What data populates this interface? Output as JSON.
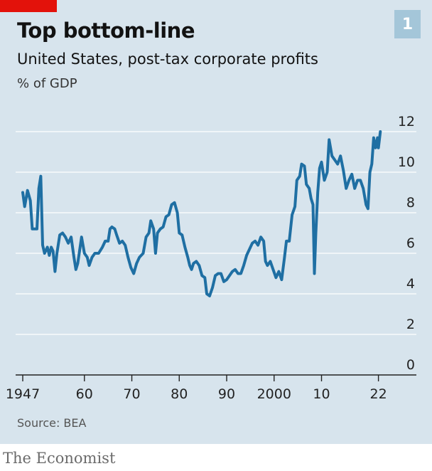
{
  "badge": "1",
  "header": {
    "title": "Top bottom-line",
    "subtitle": "United States, post-tax corporate profits",
    "unit": "% of GDP"
  },
  "footer": {
    "source": "Source: BEA",
    "brand": "The Economist"
  },
  "colors": {
    "background": "#d7e4ed",
    "line": "#1f6fa3",
    "accent_red": "#e3120b",
    "badge": "#a4c6d9",
    "grid": "#ffffff"
  },
  "chart_data": {
    "type": "line",
    "title": "Top bottom-line",
    "subtitle": "United States, post-tax corporate profits",
    "ylabel": "% of GDP",
    "xlabel": "",
    "xlim": [
      1945.5,
      2030
    ],
    "ylim": [
      0,
      12
    ],
    "y_ticks": [
      0,
      2,
      4,
      6,
      8,
      10,
      12
    ],
    "x_ticks": [
      {
        "value": 1947,
        "label": "1947"
      },
      {
        "value": 1960,
        "label": "60"
      },
      {
        "value": 1970,
        "label": "70"
      },
      {
        "value": 1980,
        "label": "80"
      },
      {
        "value": 1990,
        "label": "90"
      },
      {
        "value": 2000,
        "label": "2000"
      },
      {
        "value": 2010,
        "label": "10"
      },
      {
        "value": 2022,
        "label": "22"
      }
    ],
    "grid": true,
    "y_axis_side": "right",
    "series": [
      {
        "values": [
          [
            1947.0,
            9.0
          ],
          [
            1947.4,
            8.3
          ],
          [
            1948.0,
            9.1
          ],
          [
            1948.6,
            8.6
          ],
          [
            1949.0,
            7.2
          ],
          [
            1949.6,
            7.2
          ],
          [
            1950.0,
            7.2
          ],
          [
            1950.4,
            9.2
          ],
          [
            1950.8,
            9.8
          ],
          [
            1951.2,
            6.4
          ],
          [
            1951.6,
            6.0
          ],
          [
            1952.2,
            6.3
          ],
          [
            1952.6,
            5.9
          ],
          [
            1953.0,
            6.3
          ],
          [
            1953.4,
            6.1
          ],
          [
            1953.8,
            5.1
          ],
          [
            1954.2,
            6.0
          ],
          [
            1954.8,
            6.9
          ],
          [
            1955.4,
            7.0
          ],
          [
            1956.0,
            6.8
          ],
          [
            1956.6,
            6.5
          ],
          [
            1957.2,
            6.8
          ],
          [
            1957.8,
            5.8
          ],
          [
            1958.2,
            5.2
          ],
          [
            1958.6,
            5.5
          ],
          [
            1959.4,
            6.8
          ],
          [
            1960.0,
            6.0
          ],
          [
            1960.6,
            5.8
          ],
          [
            1961.0,
            5.4
          ],
          [
            1961.6,
            5.8
          ],
          [
            1962.2,
            6.0
          ],
          [
            1963.0,
            6.0
          ],
          [
            1963.8,
            6.3
          ],
          [
            1964.4,
            6.6
          ],
          [
            1965.0,
            6.6
          ],
          [
            1965.4,
            7.2
          ],
          [
            1965.8,
            7.3
          ],
          [
            1966.4,
            7.2
          ],
          [
            1966.8,
            6.9
          ],
          [
            1967.4,
            6.5
          ],
          [
            1968.0,
            6.6
          ],
          [
            1968.6,
            6.4
          ],
          [
            1969.2,
            5.8
          ],
          [
            1969.8,
            5.3
          ],
          [
            1970.4,
            5.0
          ],
          [
            1971.0,
            5.5
          ],
          [
            1971.6,
            5.8
          ],
          [
            1972.4,
            6.0
          ],
          [
            1973.0,
            6.8
          ],
          [
            1973.6,
            7.0
          ],
          [
            1974.0,
            7.6
          ],
          [
            1974.6,
            7.2
          ],
          [
            1975.0,
            6.0
          ],
          [
            1975.4,
            7.0
          ],
          [
            1976.0,
            7.2
          ],
          [
            1976.6,
            7.3
          ],
          [
            1977.2,
            7.8
          ],
          [
            1977.8,
            7.9
          ],
          [
            1978.4,
            8.4
          ],
          [
            1979.0,
            8.5
          ],
          [
            1979.6,
            8.0
          ],
          [
            1980.0,
            7.0
          ],
          [
            1980.6,
            6.9
          ],
          [
            1981.2,
            6.3
          ],
          [
            1981.8,
            5.8
          ],
          [
            1982.2,
            5.4
          ],
          [
            1982.6,
            5.2
          ],
          [
            1983.0,
            5.5
          ],
          [
            1983.6,
            5.6
          ],
          [
            1984.2,
            5.4
          ],
          [
            1984.8,
            4.9
          ],
          [
            1985.4,
            4.8
          ],
          [
            1985.8,
            4.0
          ],
          [
            1986.4,
            3.9
          ],
          [
            1987.0,
            4.3
          ],
          [
            1987.6,
            4.9
          ],
          [
            1988.2,
            5.0
          ],
          [
            1988.8,
            5.0
          ],
          [
            1989.4,
            4.6
          ],
          [
            1990.0,
            4.7
          ],
          [
            1990.6,
            4.9
          ],
          [
            1991.2,
            5.1
          ],
          [
            1991.8,
            5.2
          ],
          [
            1992.4,
            5.0
          ],
          [
            1993.0,
            5.0
          ],
          [
            1993.6,
            5.4
          ],
          [
            1994.2,
            5.9
          ],
          [
            1994.8,
            6.2
          ],
          [
            1995.4,
            6.5
          ],
          [
            1996.0,
            6.6
          ],
          [
            1996.6,
            6.4
          ],
          [
            1997.2,
            6.8
          ],
          [
            1997.8,
            6.6
          ],
          [
            1998.2,
            5.6
          ],
          [
            1998.6,
            5.4
          ],
          [
            1999.2,
            5.6
          ],
          [
            1999.8,
            5.2
          ],
          [
            2000.4,
            4.8
          ],
          [
            2001.0,
            5.1
          ],
          [
            2001.6,
            4.7
          ],
          [
            2002.2,
            5.8
          ],
          [
            2002.6,
            6.6
          ],
          [
            2003.2,
            6.6
          ],
          [
            2003.8,
            7.9
          ],
          [
            2004.4,
            8.3
          ],
          [
            2004.8,
            9.6
          ],
          [
            2005.4,
            9.8
          ],
          [
            2005.8,
            10.4
          ],
          [
            2006.4,
            10.3
          ],
          [
            2006.8,
            9.4
          ],
          [
            2007.4,
            9.2
          ],
          [
            2007.8,
            8.7
          ],
          [
            2008.2,
            8.4
          ],
          [
            2008.5,
            5.0
          ],
          [
            2008.8,
            7.0
          ],
          [
            2009.2,
            9.0
          ],
          [
            2009.6,
            10.2
          ],
          [
            2010.0,
            10.5
          ],
          [
            2010.6,
            9.6
          ],
          [
            2011.2,
            10.0
          ],
          [
            2011.6,
            11.6
          ],
          [
            2012.2,
            10.8
          ],
          [
            2012.8,
            10.6
          ],
          [
            2013.4,
            10.4
          ],
          [
            2014.0,
            10.8
          ],
          [
            2014.6,
            10.1
          ],
          [
            2015.2,
            9.2
          ],
          [
            2015.8,
            9.6
          ],
          [
            2016.4,
            9.9
          ],
          [
            2017.0,
            9.2
          ],
          [
            2017.6,
            9.6
          ],
          [
            2018.2,
            9.6
          ],
          [
            2018.8,
            9.2
          ],
          [
            2019.4,
            8.4
          ],
          [
            2019.8,
            8.2
          ],
          [
            2020.2,
            10.0
          ],
          [
            2020.6,
            10.4
          ],
          [
            2021.0,
            11.7
          ],
          [
            2021.4,
            11.2
          ],
          [
            2021.8,
            11.7
          ],
          [
            2022.0,
            11.2
          ],
          [
            2022.4,
            12.0
          ]
        ]
      }
    ]
  }
}
